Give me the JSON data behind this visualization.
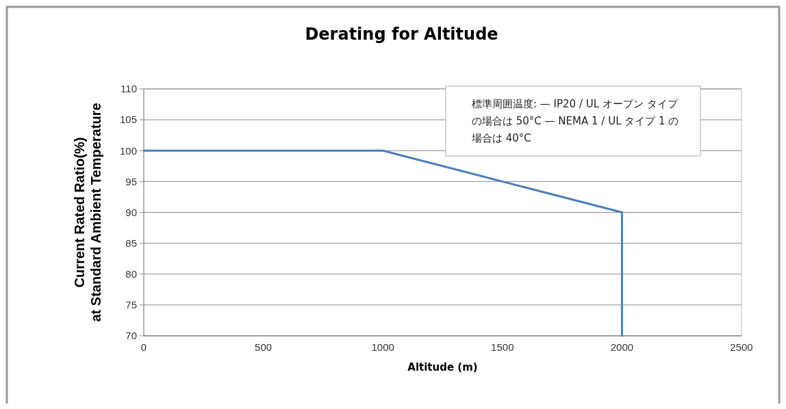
{
  "chart_data": {
    "type": "line",
    "title": "Derating for Altitude",
    "xlabel": "Altitude (m)",
    "ylabel": "Current Rated Ratio(%)\nat Standard Ambient Temperature",
    "x": [
      0,
      1000,
      2000,
      2000
    ],
    "series": [
      {
        "color": "#4a7ebb",
        "values": [
          100,
          100,
          90,
          70
        ]
      }
    ],
    "xlim": [
      0,
      2500
    ],
    "xticks": [
      0,
      500,
      1000,
      1500,
      2000,
      2500
    ],
    "ylim": [
      70,
      110
    ],
    "yticks": [
      70,
      75,
      80,
      85,
      90,
      95,
      100,
      105,
      110
    ],
    "grid": "y",
    "marker": "none",
    "line_style": "solid",
    "annotations": [
      "標準周囲温度: — IP20 / UL オープン タイプの場合は 50°C — NEMA 1 / UL タイプ 1 の場合は 40°C"
    ]
  }
}
